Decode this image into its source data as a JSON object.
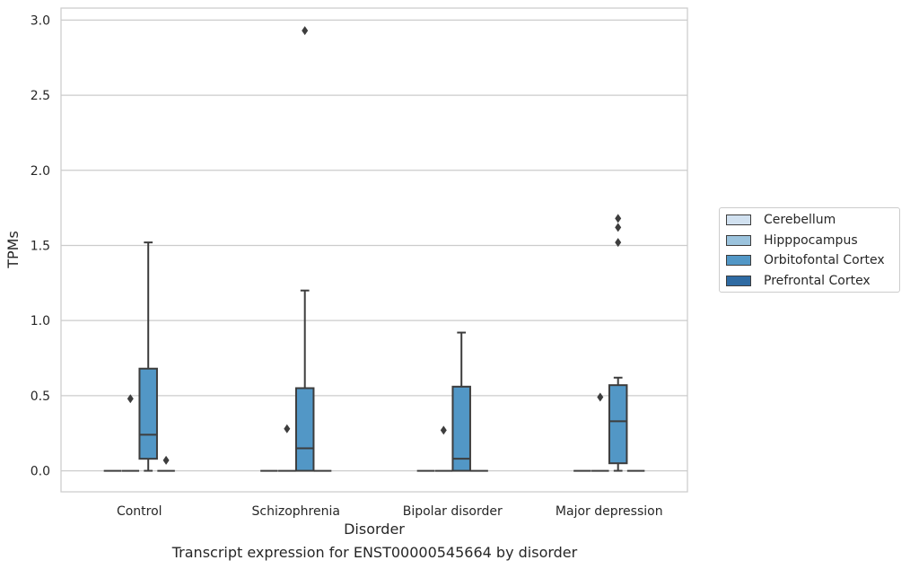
{
  "chart_data": {
    "type": "box",
    "xlabel": "Disorder",
    "ylabel": "TPMs",
    "caption": "Transcript expression for ENST00000545664 by disorder",
    "ylim": [
      -0.14,
      3.08
    ],
    "yticks": [
      0.0,
      0.5,
      1.0,
      1.5,
      2.0,
      2.5,
      3.0
    ],
    "ytick_labels": [
      "0.0",
      "0.5",
      "1.0",
      "1.5",
      "2.0",
      "2.5",
      "3.0"
    ],
    "grid": "horizontal",
    "legend_position": "right",
    "categories": [
      "Control",
      "Schizophrenia",
      "Bipolar disorder",
      "Major depression"
    ],
    "series": [
      {
        "name": "Cerebellum",
        "color": "#d1e1f0",
        "boxes": [
          {
            "category": "Control",
            "whisker_low": 0,
            "q1": 0,
            "median": 0,
            "q3": 0,
            "whisker_high": 0,
            "outliers": []
          },
          {
            "category": "Schizophrenia",
            "whisker_low": 0,
            "q1": 0,
            "median": 0,
            "q3": 0,
            "whisker_high": 0,
            "outliers": []
          },
          {
            "category": "Bipolar disorder",
            "whisker_low": 0,
            "q1": 0,
            "median": 0,
            "q3": 0,
            "whisker_high": 0,
            "outliers": []
          },
          {
            "category": "Major depression",
            "whisker_low": 0,
            "q1": 0,
            "median": 0,
            "q3": 0,
            "whisker_high": 0,
            "outliers": []
          }
        ]
      },
      {
        "name": "Hipppocampus",
        "color": "#9bc3dd",
        "boxes": [
          {
            "category": "Control",
            "whisker_low": 0,
            "q1": 0,
            "median": 0,
            "q3": 0,
            "whisker_high": 0,
            "outliers": [
              0.48
            ]
          },
          {
            "category": "Schizophrenia",
            "whisker_low": 0,
            "q1": 0,
            "median": 0,
            "q3": 0,
            "whisker_high": 0,
            "outliers": [
              0.28
            ]
          },
          {
            "category": "Bipolar disorder",
            "whisker_low": 0,
            "q1": 0,
            "median": 0,
            "q3": 0,
            "whisker_high": 0,
            "outliers": [
              0.27
            ]
          },
          {
            "category": "Major depression",
            "whisker_low": 0,
            "q1": 0,
            "median": 0,
            "q3": 0,
            "whisker_high": 0,
            "outliers": [
              0.49
            ]
          }
        ]
      },
      {
        "name": "Orbitofontal Cortex",
        "color": "#5297c6",
        "boxes": [
          {
            "category": "Control",
            "whisker_low": 0,
            "q1": 0.08,
            "median": 0.24,
            "q3": 0.68,
            "whisker_high": 1.52,
            "outliers": []
          },
          {
            "category": "Schizophrenia",
            "whisker_low": 0,
            "q1": 0,
            "median": 0.15,
            "q3": 0.55,
            "whisker_high": 1.2,
            "outliers": [
              2.93
            ]
          },
          {
            "category": "Bipolar disorder",
            "whisker_low": 0,
            "q1": 0,
            "median": 0.08,
            "q3": 0.56,
            "whisker_high": 0.92,
            "outliers": []
          },
          {
            "category": "Major depression",
            "whisker_low": 0,
            "q1": 0.05,
            "median": 0.33,
            "q3": 0.57,
            "whisker_high": 0.62,
            "outliers": [
              1.52,
              1.62,
              1.68
            ]
          }
        ]
      },
      {
        "name": "Prefrontal Cortex",
        "color": "#2f6ba3",
        "boxes": [
          {
            "category": "Control",
            "whisker_low": 0,
            "q1": 0,
            "median": 0,
            "q3": 0,
            "whisker_high": 0,
            "outliers": [
              0.07
            ]
          },
          {
            "category": "Schizophrenia",
            "whisker_low": 0,
            "q1": 0,
            "median": 0,
            "q3": 0,
            "whisker_high": 0,
            "outliers": []
          },
          {
            "category": "Bipolar disorder",
            "whisker_low": 0,
            "q1": 0,
            "median": 0,
            "q3": 0,
            "whisker_high": 0,
            "outliers": []
          },
          {
            "category": "Major depression",
            "whisker_low": 0,
            "q1": 0,
            "median": 0,
            "q3": 0,
            "whisker_high": 0,
            "outliers": []
          }
        ]
      }
    ]
  }
}
